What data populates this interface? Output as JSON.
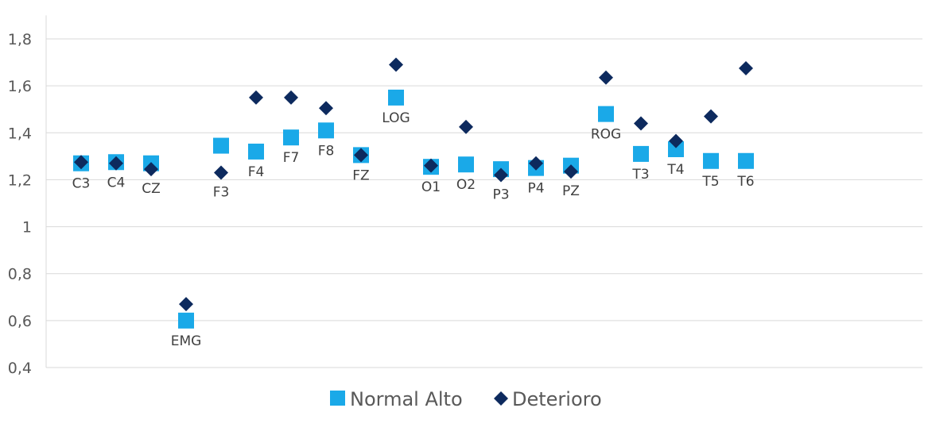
{
  "chart_data": {
    "type": "scatter",
    "categories": [
      "C3",
      "C4",
      "CZ",
      "EMG",
      "F3",
      "F4",
      "F7",
      "F8",
      "FZ",
      "LOG",
      "O1",
      "O2",
      "P3",
      "P4",
      "PZ",
      "ROG",
      "T3",
      "T4",
      "T5",
      "T6"
    ],
    "ylim": [
      0.4,
      1.9
    ],
    "yticks": [
      0.4,
      0.6,
      0.8,
      1,
      1.2,
      1.4,
      1.6,
      1.8
    ],
    "ytick_labels": [
      "0,4",
      "0,6",
      "0,8",
      "1",
      "1,2",
      "1,4",
      "1,6",
      "1,8"
    ],
    "grid": true,
    "legend_position": "bottom",
    "series": [
      {
        "name": "Normal Alto",
        "marker": "square",
        "color": "#1aa9e8",
        "values": [
          1.27,
          1.275,
          1.27,
          0.6,
          1.345,
          1.32,
          1.38,
          1.41,
          1.305,
          1.55,
          1.255,
          1.265,
          1.245,
          1.25,
          1.26,
          1.48,
          1.31,
          1.33,
          1.28,
          1.28
        ]
      },
      {
        "name": "Deterioro",
        "marker": "diamond",
        "color": "#0d2a5e",
        "values": [
          1.275,
          1.27,
          1.245,
          0.67,
          1.23,
          1.55,
          1.55,
          1.505,
          1.305,
          1.69,
          1.26,
          1.425,
          1.22,
          1.27,
          1.235,
          1.635,
          1.44,
          1.365,
          1.47,
          1.675
        ]
      }
    ],
    "data_labels": [
      "C3",
      "C4",
      "CZ",
      "EMG",
      "F3",
      "F4",
      "F7",
      "F8",
      "FZ",
      "LOG",
      "O1",
      "O2",
      "P3",
      "P4",
      "PZ",
      "ROG",
      "T3",
      "T4",
      "T5",
      "T6"
    ]
  }
}
